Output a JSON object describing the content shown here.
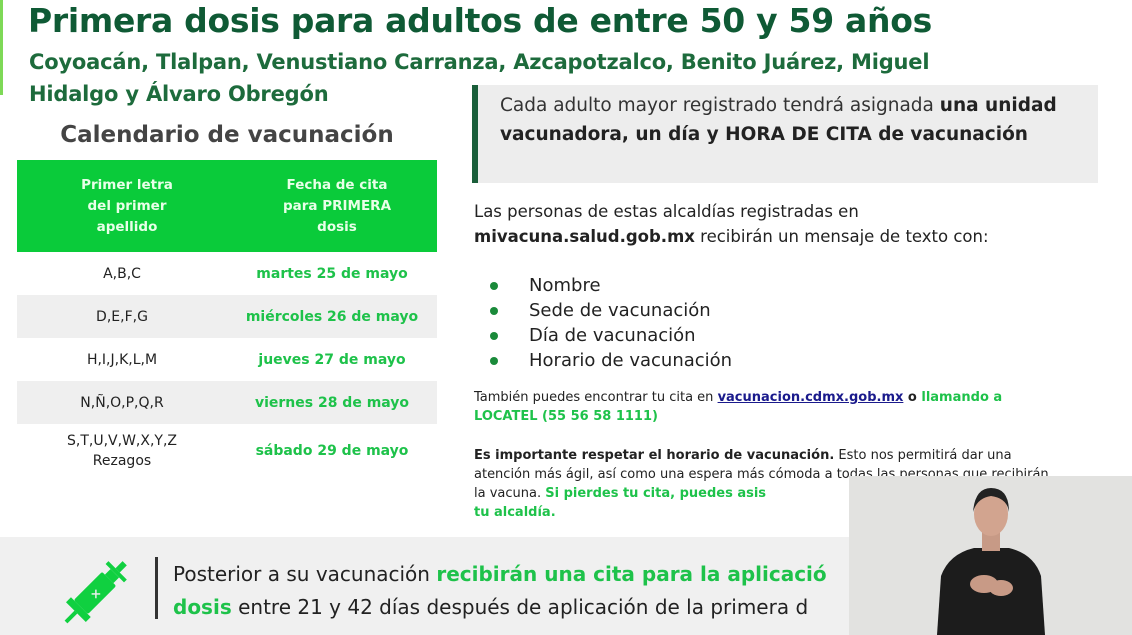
{
  "header": {
    "title": "Primera dosis para adultos de entre 50 y 59 años",
    "subtitle": "Coyoacán, Tlalpan, Venustiano Carranza, Azcapotzalco, Benito Juárez, Miguel Hidalgo y Álvaro Obregón"
  },
  "calendar": {
    "title": "Calendario de vacunación",
    "columns": [
      "Primer letra del primer apellido",
      "Fecha de cita para PRIMERA dosis"
    ],
    "rows": [
      {
        "letters": "A,B,C",
        "date": "martes 25 de mayo"
      },
      {
        "letters": "D,E,F,G",
        "date": "miércoles 26 de mayo"
      },
      {
        "letters": "H,I,J,K,L,M",
        "date": "jueves  27 de mayo"
      },
      {
        "letters": "N,Ñ,O,P,Q,R",
        "date": "viernes 28 de mayo"
      },
      {
        "letters": "S,T,U,V,W,X,Y,Z",
        "letters_extra": "Rezagos",
        "date": "sábado  29 de mayo"
      }
    ]
  },
  "callout": {
    "text_normal": "Cada adulto mayor registrado tendrá asignada ",
    "text_bold": "una unidad vacunadora, un día y HORA DE CITA de vacunación"
  },
  "message": {
    "line1": "Las personas de estas alcaldías registradas en",
    "site": "mivacuna.salud.gob.mx",
    "line2": " recibirán un mensaje de texto con:",
    "items": [
      "Nombre",
      "Sede de vacunación",
      "Día de vacunación",
      "Horario de vacunación"
    ]
  },
  "info": {
    "prefix": "También puedes encontrar tu cita en ",
    "link": "vacunacion.cdmx.gob.mx",
    "middle": " o ",
    "green": "llamando a LOCATEL (55 56 58 1111)"
  },
  "notice": {
    "bold": "Es importante respetar el horario de vacunación.",
    "normal": " Esto nos permitirá dar una atención más ágil, así como una espera más cómoda a todas las personas que recibirán la vacuna. ",
    "green": "Si pierdes tu cita, puedes asis",
    "green2": "tu alcaldía."
  },
  "banner": {
    "part1": "Posterior a su vacunación ",
    "part2": "recibirán una cita para la aplicació",
    "part3": "dosis",
    "part4": " entre 21 y 42 días después de aplicación de la primera d"
  },
  "colors": {
    "dark_green": "#0f5a35",
    "bright_green": "#0acb3a",
    "text_green": "#1ec24a"
  }
}
